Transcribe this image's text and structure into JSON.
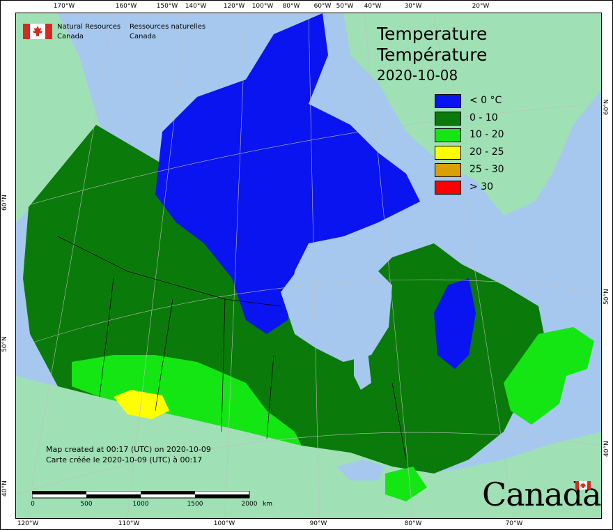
{
  "title": {
    "line1": "Temperature",
    "line2": "Température",
    "date": "2020-10-08"
  },
  "agency": {
    "en_line1": "Natural Resources",
    "en_line2": "Canada",
    "fr_line1": "Ressources naturelles",
    "fr_line2": "Canada"
  },
  "legend": [
    {
      "label": "< 0 °C",
      "color": "#0a14f0"
    },
    {
      "label": "0 - 10",
      "color": "#0a7a0a"
    },
    {
      "label": "10 - 20",
      "color": "#14e614"
    },
    {
      "label": "20 - 25",
      "color": "#ffff00"
    },
    {
      "label": "25 - 30",
      "color": "#d9a000"
    },
    {
      "label": "> 30",
      "color": "#ff0000"
    }
  ],
  "credit": {
    "en": "Map created at 00:17 (UTC) on 2020-10-09",
    "fr": "Carte créée le 2020-10-09 (UTC) à 00:17"
  },
  "scalebar": {
    "labels": [
      "0",
      "500",
      "1000",
      "1500",
      "2000"
    ],
    "unit": "km"
  },
  "wordmark": "Canada",
  "graticule": {
    "top": [
      "170°W",
      "160°W",
      "150°W",
      "140°W",
      "120°W",
      "100°W",
      "80°W",
      "60°W",
      "50°W",
      "40°W",
      "30°W",
      "20°W"
    ],
    "bottom": [
      "120°W",
      "110°W",
      "100°W",
      "90°W",
      "80°W",
      "70°W"
    ],
    "left": [
      "60°N",
      "50°N",
      "40°N"
    ],
    "right": [
      "60°N",
      "50°N",
      "40°N"
    ]
  },
  "colors": {
    "ocean": "#a6c8ee",
    "land_outside": "#9fe0b5",
    "border": "#000000"
  }
}
